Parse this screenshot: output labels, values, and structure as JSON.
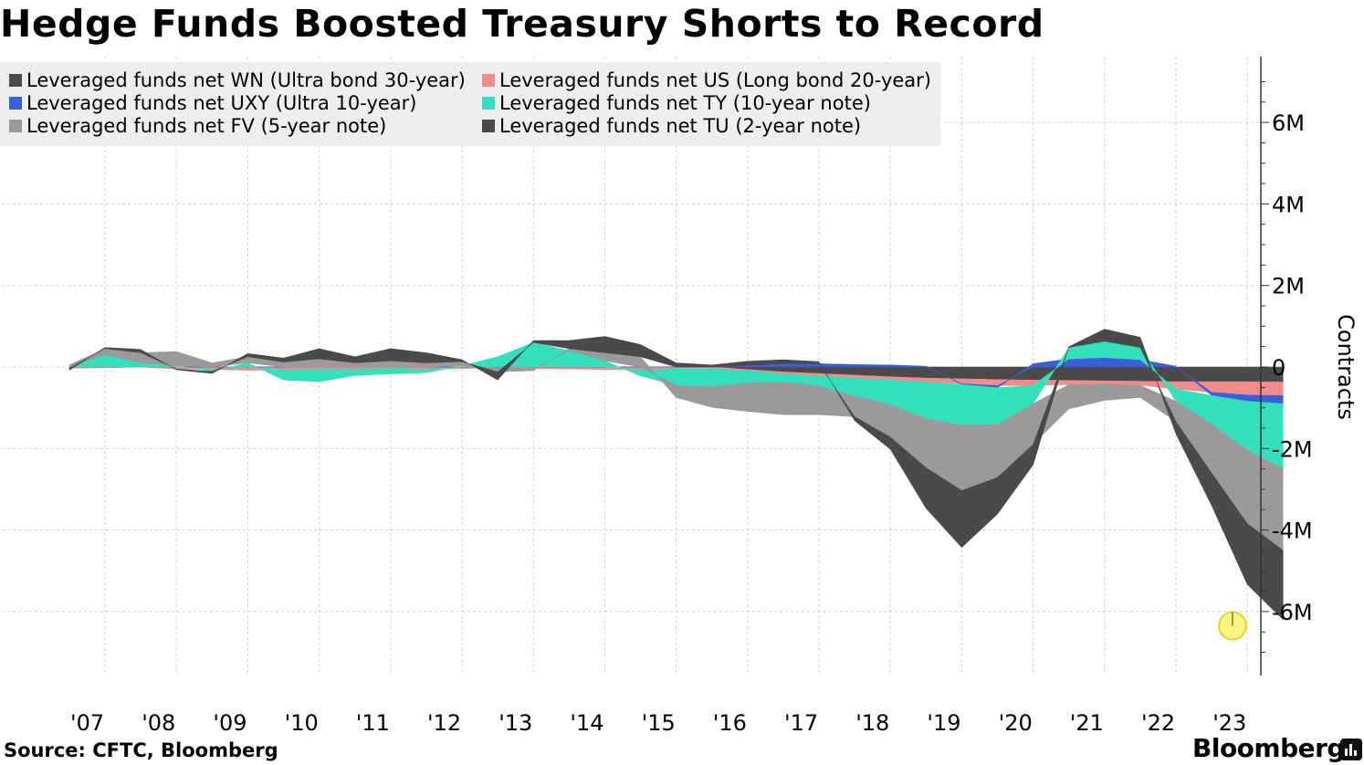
{
  "title": "Hedge Funds Boosted Treasury Shorts to Record",
  "source": "Source: CFTC, Bloomberg",
  "brand": "Bloomberg",
  "chart_data": {
    "type": "area",
    "stacked": true,
    "title": "Hedge Funds Boosted Treasury Shorts to Record",
    "ylabel": "Contracts",
    "xlabel": "",
    "ylim": [
      -7500000,
      7500000
    ],
    "xlim": [
      2006.5,
      2023.75
    ],
    "y_ticks": [
      6000000,
      4000000,
      2000000,
      0,
      -2000000,
      -4000000,
      -6000000
    ],
    "y_tick_labels": [
      "6M",
      "4M",
      "2M",
      "0",
      "-2M",
      "-4M",
      "-6M"
    ],
    "x_ticks": [
      2007,
      2008,
      2009,
      2010,
      2011,
      2012,
      2013,
      2014,
      2015,
      2016,
      2017,
      2018,
      2019,
      2020,
      2021,
      2022,
      2023
    ],
    "x_tick_labels": [
      "'07",
      "'08",
      "'09",
      "'10",
      "'11",
      "'12",
      "'13",
      "'14",
      "'15",
      "'16",
      "'17",
      "'18",
      "'19",
      "'20",
      "'21",
      "'22",
      "'23"
    ],
    "legend_placement": "top-left",
    "x": [
      2006.5,
      2007.0,
      2007.5,
      2008.0,
      2008.5,
      2009.0,
      2009.5,
      2010.0,
      2010.5,
      2011.0,
      2011.5,
      2012.0,
      2012.5,
      2013.0,
      2013.5,
      2014.0,
      2014.5,
      2015.0,
      2015.5,
      2016.0,
      2016.5,
      2017.0,
      2017.5,
      2018.0,
      2018.5,
      2019.0,
      2019.5,
      2020.0,
      2020.5,
      2021.0,
      2021.5,
      2022.0,
      2022.5,
      2023.0,
      2023.5
    ],
    "series": [
      {
        "name": "Leveraged funds net WN (Ultra bond 30-year)",
        "color": "#4a4a4a",
        "values": [
          0,
          0,
          0,
          0,
          0,
          0,
          0,
          0,
          0,
          0,
          0,
          0,
          0,
          0,
          0,
          0,
          0,
          0,
          0,
          -60000,
          -120000,
          -160000,
          -200000,
          -240000,
          -270000,
          -290000,
          -310000,
          -320000,
          -330000,
          -340000,
          -350000,
          -360000,
          -360000,
          -360000,
          -370000
        ]
      },
      {
        "name": "Leveraged funds net US (Long bond 20-year)",
        "color": "#f28b8b",
        "values": [
          -30000,
          -20000,
          0,
          -50000,
          -60000,
          -80000,
          -70000,
          -60000,
          -60000,
          -50000,
          -60000,
          -40000,
          -20000,
          -40000,
          -50000,
          -60000,
          -70000,
          -50000,
          -40000,
          -30000,
          -50000,
          -60000,
          -70000,
          -80000,
          -100000,
          -120000,
          -150000,
          -130000,
          -100000,
          -80000,
          -100000,
          -180000,
          -260000,
          -330000,
          -330000
        ]
      },
      {
        "name": "Leveraged funds net UXY (Ultra 10-year)",
        "color": "#3b5fd9",
        "values": [
          0,
          0,
          0,
          0,
          0,
          0,
          0,
          0,
          0,
          0,
          0,
          0,
          0,
          0,
          0,
          0,
          0,
          0,
          0,
          40000,
          80000,
          80000,
          60000,
          50000,
          20000,
          -20000,
          -50000,
          80000,
          200000,
          230000,
          180000,
          20000,
          -80000,
          -150000,
          -200000
        ]
      },
      {
        "name": "Leveraged funds net TY (10-year note)",
        "color": "#33e0bb",
        "values": [
          0,
          300000,
          100000,
          30000,
          -50000,
          100000,
          -250000,
          -300000,
          -150000,
          -120000,
          -80000,
          30000,
          250000,
          600000,
          400000,
          150000,
          -150000,
          -400000,
          -450000,
          -300000,
          -200000,
          -250000,
          -450000,
          -600000,
          -900000,
          -1000000,
          -900000,
          -450000,
          280000,
          400000,
          300000,
          -300000,
          -700000,
          -1200000,
          -1600000
        ]
      },
      {
        "name": "Leveraged funds net FV (5-year note)",
        "color": "#9a9a9a",
        "values": [
          50000,
          150000,
          250000,
          350000,
          100000,
          150000,
          120000,
          200000,
          100000,
          150000,
          100000,
          100000,
          -100000,
          -50000,
          50000,
          200000,
          250000,
          -300000,
          -500000,
          -700000,
          -800000,
          -700000,
          -500000,
          -800000,
          -1200000,
          -1600000,
          -1300000,
          -1000000,
          -600000,
          -400000,
          -300000,
          -500000,
          -1200000,
          -1800000,
          -2000000
        ]
      },
      {
        "name": "Leveraged funds net TU (2-year note)",
        "color": "#4a4a4a",
        "values": [
          -50000,
          30000,
          80000,
          -20000,
          -50000,
          80000,
          100000,
          250000,
          150000,
          300000,
          250000,
          50000,
          -200000,
          50000,
          200000,
          400000,
          300000,
          100000,
          50000,
          100000,
          100000,
          50000,
          -100000,
          -300000,
          -1000000,
          -1400000,
          -900000,
          -500000,
          20000,
          300000,
          250000,
          -300000,
          -800000,
          -1500000,
          -1700000
        ]
      }
    ],
    "annotations": [
      {
        "type": "highlight-circle",
        "x": 2023.5,
        "y": -6350000
      }
    ]
  }
}
